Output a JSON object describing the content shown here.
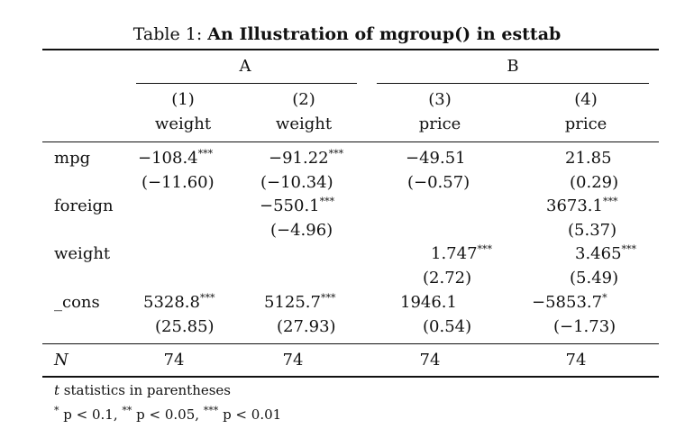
{
  "caption": {
    "prefix": "Table 1: ",
    "title": "An Illustration of mgroup() in esttab"
  },
  "groups": [
    "A",
    "B"
  ],
  "columns": [
    {
      "num": "(1)",
      "dep": "weight"
    },
    {
      "num": "(2)",
      "dep": "weight"
    },
    {
      "num": "(3)",
      "dep": "price"
    },
    {
      "num": "(4)",
      "dep": "price"
    }
  ],
  "rows": [
    {
      "label": "mpg",
      "coef": [
        {
          "v": "−108.4",
          "s": "***"
        },
        {
          "v": "−91.22",
          "s": "***"
        },
        {
          "v": "−49.51",
          "s": ""
        },
        {
          "v": "21.85",
          "s": ""
        }
      ],
      "t": [
        "(−11.60)",
        "(−10.34)",
        "(−0.57)",
        "(0.29)"
      ]
    },
    {
      "label": "foreign",
      "coef": [
        {
          "v": "",
          "s": ""
        },
        {
          "v": "−550.1",
          "s": "***"
        },
        {
          "v": "",
          "s": ""
        },
        {
          "v": "3673.1",
          "s": "***"
        }
      ],
      "t": [
        "",
        "(−4.96)",
        "",
        "(5.37)"
      ]
    },
    {
      "label": "weight",
      "coef": [
        {
          "v": "",
          "s": ""
        },
        {
          "v": "",
          "s": ""
        },
        {
          "v": "1.747",
          "s": "***"
        },
        {
          "v": "3.465",
          "s": "***"
        }
      ],
      "t": [
        "",
        "",
        "(2.72)",
        "(5.49)"
      ]
    },
    {
      "label": "_cons",
      "coef": [
        {
          "v": "5328.8",
          "s": "***"
        },
        {
          "v": "5125.7",
          "s": "***"
        },
        {
          "v": "1946.1",
          "s": ""
        },
        {
          "v": "−5853.7",
          "s": "*"
        }
      ],
      "t": [
        "(25.85)",
        "(27.93)",
        "(0.54)",
        "(−1.73)"
      ]
    }
  ],
  "n_row": {
    "label": "N",
    "values": [
      "74",
      "74",
      "74",
      "74"
    ]
  },
  "notes": {
    "line1_var": "t",
    "line1_text": " statistics in parentheses",
    "line2": [
      {
        "star": "*",
        "text": " p < 0.1, "
      },
      {
        "star": "**",
        "text": " p < 0.05, "
      },
      {
        "star": "***",
        "text": " p < 0.01"
      }
    ]
  }
}
